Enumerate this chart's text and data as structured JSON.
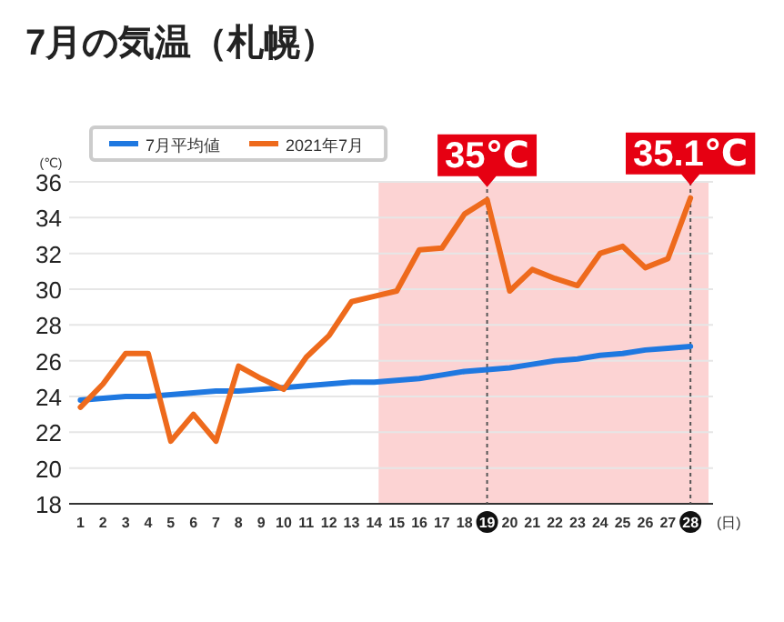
{
  "chart_data": {
    "type": "line",
    "title": "7月の気温（札幌）",
    "ylabel": "(℃)",
    "xlabel": "(日)",
    "x": [
      1,
      2,
      3,
      4,
      5,
      6,
      7,
      8,
      9,
      10,
      11,
      12,
      13,
      14,
      15,
      16,
      17,
      18,
      19,
      20,
      21,
      22,
      23,
      24,
      25,
      26,
      27,
      28
    ],
    "series": [
      {
        "name": "7月平均値",
        "color": "#1f78e0",
        "values": [
          23.8,
          23.9,
          24.0,
          24.0,
          24.1,
          24.2,
          24.3,
          24.3,
          24.4,
          24.5,
          24.6,
          24.7,
          24.8,
          24.8,
          24.9,
          25.0,
          25.2,
          25.4,
          25.5,
          25.6,
          25.8,
          26.0,
          26.1,
          26.3,
          26.4,
          26.6,
          26.7,
          26.8
        ]
      },
      {
        "name": "2021年7月",
        "color": "#ee6a1c",
        "values": [
          23.4,
          24.7,
          26.4,
          26.4,
          21.5,
          23.0,
          21.5,
          25.7,
          25.0,
          24.4,
          26.2,
          27.4,
          29.3,
          29.6,
          29.9,
          32.2,
          32.3,
          34.2,
          35.0,
          29.9,
          31.1,
          30.6,
          30.2,
          32.0,
          32.4,
          31.2,
          31.7,
          35.1
        ]
      }
    ],
    "xlim": [
      0.5,
      29
    ],
    "xticks": [
      1,
      2,
      3,
      4,
      5,
      6,
      7,
      8,
      9,
      10,
      11,
      12,
      13,
      14,
      15,
      16,
      17,
      18,
      19,
      20,
      21,
      22,
      23,
      24,
      25,
      26,
      27,
      28
    ],
    "ylim": [
      18,
      36
    ],
    "yticks": [
      18,
      20,
      22,
      24,
      26,
      28,
      30,
      32,
      34,
      36
    ],
    "grid": "y",
    "legend": "top left",
    "line_style": "solid",
    "marker": "none",
    "bands": [
      {
        "axis": "x",
        "from": 14.2,
        "to": 28.8,
        "color": "#fbc8c8"
      }
    ],
    "ref_lines": [
      {
        "axis": "x",
        "value": 19,
        "color": "#555555",
        "line_style": "dotted"
      },
      {
        "axis": "x",
        "value": 28,
        "color": "#555555",
        "line_style": "dotted"
      }
    ],
    "annotations": [
      {
        "text": "35℃",
        "x": 19,
        "y": 35.0
      },
      {
        "text": "35.1℃",
        "x": 28,
        "y": 35.1
      }
    ]
  }
}
